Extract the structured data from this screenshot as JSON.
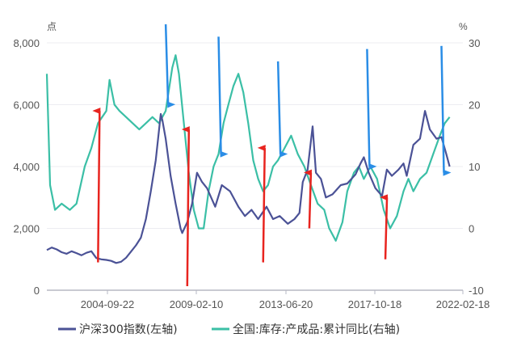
{
  "chart_data": {
    "type": "line",
    "left_unit": "点",
    "right_unit": "%",
    "x_ticks": [
      "2004-09-22",
      "2009-02-10",
      "2013-06-20",
      "2017-10-18",
      "2022-02-18"
    ],
    "x_range": [
      "2002-01-01",
      "2022-12-31"
    ],
    "y_left": {
      "ticks": [
        "0",
        "2,000",
        "4,000",
        "6,000",
        "8,000"
      ],
      "range": [
        0,
        8000
      ]
    },
    "y_right": {
      "ticks": [
        "-10",
        "0",
        "10",
        "20",
        "30"
      ],
      "range": [
        -10,
        30
      ]
    },
    "grid": "horizontal",
    "legend": {
      "position": "bottom"
    },
    "series": [
      {
        "name": "沪深300指数(左轴)",
        "axis": "left",
        "color": "#4b5296",
        "points": [
          [
            "2002-01-01",
            1300
          ],
          [
            "2002-04-01",
            1380
          ],
          [
            "2002-07-01",
            1320
          ],
          [
            "2002-10-01",
            1230
          ],
          [
            "2003-01-01",
            1180
          ],
          [
            "2003-04-01",
            1260
          ],
          [
            "2003-07-01",
            1200
          ],
          [
            "2003-10-01",
            1130
          ],
          [
            "2004-01-01",
            1210
          ],
          [
            "2004-04-01",
            1260
          ],
          [
            "2004-07-01",
            1040
          ],
          [
            "2004-10-01",
            1000
          ],
          [
            "2005-01-01",
            980
          ],
          [
            "2005-04-01",
            950
          ],
          [
            "2005-07-01",
            880
          ],
          [
            "2005-10-01",
            920
          ],
          [
            "2006-01-01",
            1050
          ],
          [
            "2006-04-01",
            1250
          ],
          [
            "2006-07-01",
            1450
          ],
          [
            "2006-10-01",
            1700
          ],
          [
            "2007-01-01",
            2300
          ],
          [
            "2007-04-01",
            3200
          ],
          [
            "2007-07-01",
            4200
          ],
          [
            "2007-10-01",
            5700
          ],
          [
            "2007-11-01",
            5500
          ],
          [
            "2008-01-01",
            4900
          ],
          [
            "2008-04-01",
            3700
          ],
          [
            "2008-07-01",
            2800
          ],
          [
            "2008-10-01",
            2000
          ],
          [
            "2008-11-01",
            1850
          ],
          [
            "2009-02-01",
            2200
          ],
          [
            "2009-05-01",
            2800
          ],
          [
            "2009-08-01",
            3800
          ],
          [
            "2009-11-01",
            3500
          ],
          [
            "2010-02-01",
            3300
          ],
          [
            "2010-07-01",
            2700
          ],
          [
            "2010-11-01",
            3400
          ],
          [
            "2011-04-01",
            3200
          ],
          [
            "2011-09-01",
            2700
          ],
          [
            "2012-01-01",
            2400
          ],
          [
            "2012-05-01",
            2600
          ],
          [
            "2012-09-01",
            2300
          ],
          [
            "2013-02-01",
            2700
          ],
          [
            "2013-06-01",
            2300
          ],
          [
            "2013-10-01",
            2400
          ],
          [
            "2014-03-01",
            2150
          ],
          [
            "2014-07-01",
            2300
          ],
          [
            "2014-10-01",
            2500
          ],
          [
            "2014-12-01",
            3500
          ],
          [
            "2015-03-01",
            3900
          ],
          [
            "2015-06-01",
            5300
          ],
          [
            "2015-08-01",
            3800
          ],
          [
            "2015-11-01",
            3600
          ],
          [
            "2016-02-01",
            3000
          ],
          [
            "2016-06-01",
            3100
          ],
          [
            "2016-11-01",
            3400
          ],
          [
            "2017-03-01",
            3450
          ],
          [
            "2017-08-01",
            3750
          ],
          [
            "2017-11-01",
            4100
          ],
          [
            "2018-01-01",
            4300
          ],
          [
            "2018-04-01",
            3800
          ],
          [
            "2018-08-01",
            3300
          ],
          [
            "2018-12-01",
            3050
          ],
          [
            "2019-03-01",
            3900
          ],
          [
            "2019-06-01",
            3700
          ],
          [
            "2019-10-01",
            3900
          ],
          [
            "2020-01-01",
            4100
          ],
          [
            "2020-03-01",
            3700
          ],
          [
            "2020-07-01",
            4700
          ],
          [
            "2020-11-01",
            4900
          ],
          [
            "2021-02-01",
            5800
          ],
          [
            "2021-05-01",
            5200
          ],
          [
            "2021-09-01",
            4900
          ],
          [
            "2021-12-01",
            4950
          ],
          [
            "2022-03-01",
            4400
          ],
          [
            "2022-05-01",
            4000
          ]
        ]
      },
      {
        "name": "全国:库存:产成品:累计同比(右轴)",
        "axis": "right",
        "color": "#3bbfa6",
        "points": [
          [
            "2002-01-01",
            25
          ],
          [
            "2002-03-01",
            7
          ],
          [
            "2002-06-01",
            3
          ],
          [
            "2002-10-01",
            4
          ],
          [
            "2003-03-01",
            3
          ],
          [
            "2003-07-01",
            4
          ],
          [
            "2003-12-01",
            10
          ],
          [
            "2004-04-01",
            13
          ],
          [
            "2004-08-01",
            17
          ],
          [
            "2005-01-01",
            19
          ],
          [
            "2005-03-01",
            24
          ],
          [
            "2005-06-01",
            20
          ],
          [
            "2005-09-01",
            19
          ],
          [
            "2006-01-01",
            18
          ],
          [
            "2006-05-01",
            17
          ],
          [
            "2006-09-01",
            16
          ],
          [
            "2007-01-01",
            17
          ],
          [
            "2007-05-01",
            18
          ],
          [
            "2007-09-01",
            17
          ],
          [
            "2008-01-01",
            19
          ],
          [
            "2008-05-01",
            26
          ],
          [
            "2008-07-01",
            28
          ],
          [
            "2008-09-01",
            25
          ],
          [
            "2008-12-01",
            17
          ],
          [
            "2009-03-01",
            9
          ],
          [
            "2009-06-01",
            3
          ],
          [
            "2009-09-01",
            0
          ],
          [
            "2009-12-01",
            0
          ],
          [
            "2010-03-01",
            6
          ],
          [
            "2010-06-01",
            10
          ],
          [
            "2010-09-01",
            12
          ],
          [
            "2010-12-01",
            17
          ],
          [
            "2011-03-01",
            20
          ],
          [
            "2011-06-01",
            23
          ],
          [
            "2011-09-01",
            25
          ],
          [
            "2011-12-01",
            22
          ],
          [
            "2012-03-01",
            17
          ],
          [
            "2012-06-01",
            11
          ],
          [
            "2012-09-01",
            8
          ],
          [
            "2012-12-01",
            6
          ],
          [
            "2013-03-01",
            7
          ],
          [
            "2013-06-01",
            10
          ],
          [
            "2013-09-01",
            11
          ],
          [
            "2014-01-01",
            13
          ],
          [
            "2014-05-01",
            15
          ],
          [
            "2014-09-01",
            12
          ],
          [
            "2015-01-01",
            10
          ],
          [
            "2015-05-01",
            7
          ],
          [
            "2015-09-01",
            4
          ],
          [
            "2016-01-01",
            3
          ],
          [
            "2016-04-01",
            0
          ],
          [
            "2016-08-01",
            -2
          ],
          [
            "2016-12-01",
            1
          ],
          [
            "2017-03-01",
            6
          ],
          [
            "2017-07-01",
            9
          ],
          [
            "2017-10-01",
            10
          ],
          [
            "2018-01-01",
            8
          ],
          [
            "2018-05-01",
            10
          ],
          [
            "2018-09-01",
            8
          ],
          [
            "2019-01-01",
            3
          ],
          [
            "2019-05-01",
            0
          ],
          [
            "2019-09-01",
            2
          ],
          [
            "2020-01-01",
            6
          ],
          [
            "2020-04-01",
            8
          ],
          [
            "2020-07-01",
            6
          ],
          [
            "2020-11-01",
            8
          ],
          [
            "2021-03-01",
            9
          ],
          [
            "2021-07-01",
            12
          ],
          [
            "2021-11-01",
            15
          ],
          [
            "2022-02-01",
            17
          ],
          [
            "2022-05-01",
            18
          ]
        ]
      }
    ],
    "annotations": {
      "red_up_arrows": [
        {
          "x": "2004-08-01",
          "from": -5.5,
          "to": 19
        },
        {
          "x": "2009-02-01",
          "from": -12,
          "to": 16
        },
        {
          "x": "2012-12-01",
          "from": -5.5,
          "to": 13
        },
        {
          "x": "2015-04-01",
          "from": 0,
          "to": 9
        },
        {
          "x": "2019-02-01",
          "from": -5,
          "to": 5
        }
      ],
      "blue_down_arrows": [
        {
          "x": "2008-01-01",
          "from": 33,
          "to": 20
        },
        {
          "x": "2010-09-01",
          "from": 31,
          "to": 12
        },
        {
          "x": "2013-09-01",
          "from": 27,
          "to": 12
        },
        {
          "x": "2018-03-01",
          "from": 29,
          "to": 10
        },
        {
          "x": "2021-12-01",
          "from": 29.5,
          "to": 9
        }
      ]
    }
  }
}
